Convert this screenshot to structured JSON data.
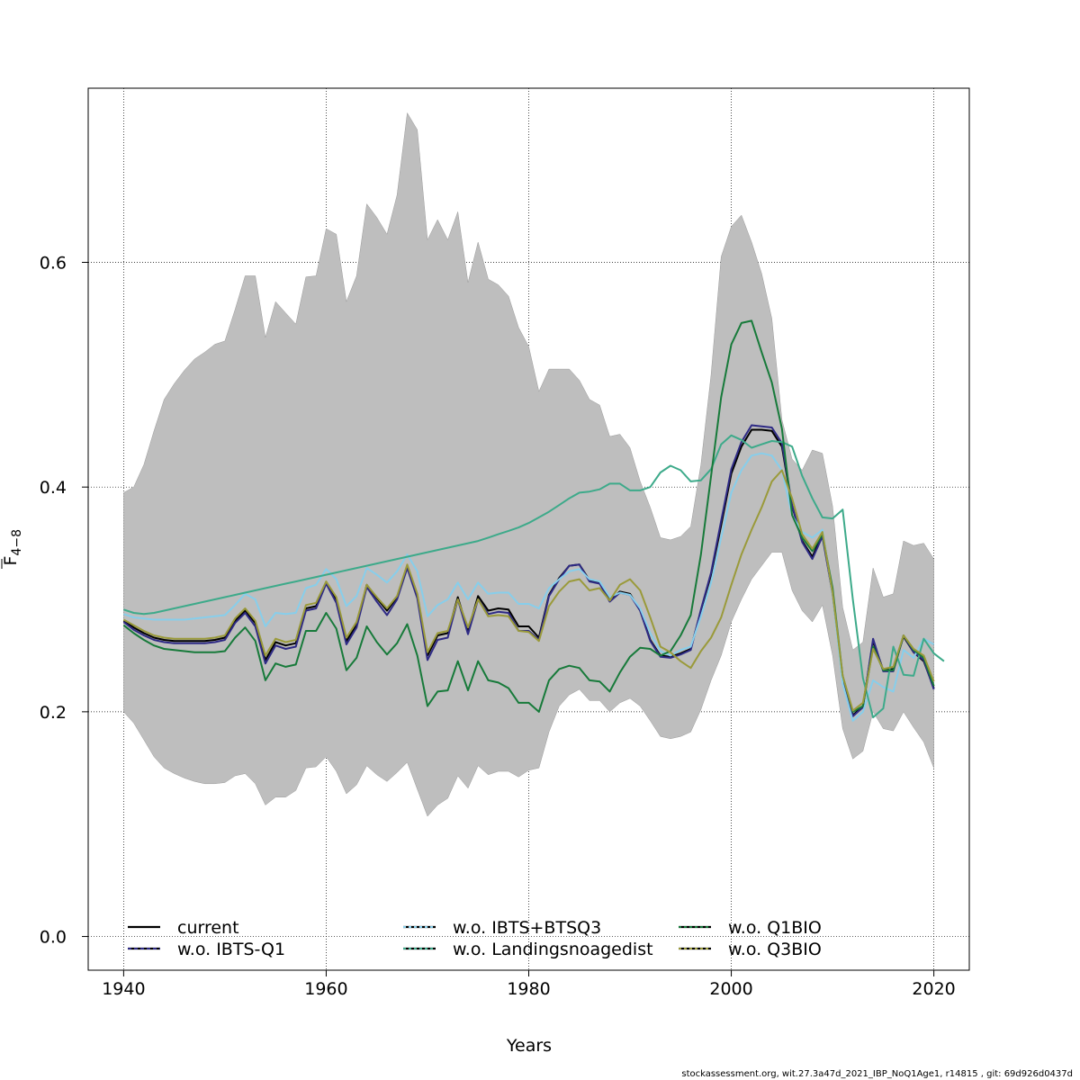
{
  "chart_data": {
    "type": "line",
    "xlabel": "Years",
    "ylabel_main": "F",
    "ylabel_sub": "4−8",
    "xlim": [
      1936.5,
      2023.5
    ],
    "ylim": [
      -0.03,
      0.755
    ],
    "x_ticks": [
      "1940",
      "1960",
      "1980",
      "2000",
      "2020"
    ],
    "y_ticks": [
      "0.0",
      "0.2",
      "0.4",
      "0.6"
    ],
    "grid": true,
    "legend_position": "bottom",
    "footer": "stockassessment.org, wit.27.3a47d_2021_IBP_NoQ1Age1, r14815 , git: 69d926d0437d",
    "years_start": 1940,
    "ci_upper": [
      0.395,
      0.4,
      0.42,
      0.45,
      0.478,
      0.492,
      0.504,
      0.514,
      0.52,
      0.527,
      0.53,
      0.558,
      0.588,
      0.588,
      0.533,
      0.565,
      0.555,
      0.545,
      0.587,
      0.588,
      0.63,
      0.625,
      0.565,
      0.588,
      0.652,
      0.64,
      0.625,
      0.66,
      0.733,
      0.718,
      0.62,
      0.638,
      0.62,
      0.645,
      0.582,
      0.618,
      0.585,
      0.58,
      0.57,
      0.542,
      0.525,
      0.485,
      0.505,
      0.505,
      0.505,
      0.495,
      0.478,
      0.473,
      0.445,
      0.447,
      0.435,
      0.405,
      0.382,
      0.355,
      0.353,
      0.356,
      0.365,
      0.42,
      0.5,
      0.605,
      0.632,
      0.642,
      0.618,
      0.59,
      0.55,
      0.46,
      0.425,
      0.415,
      0.433,
      0.43,
      0.383,
      0.293,
      0.255,
      0.262,
      0.328,
      0.302,
      0.305,
      0.352,
      0.348,
      0.35,
      0.336
    ],
    "ci_lower": [
      0.2,
      0.19,
      0.175,
      0.16,
      0.15,
      0.145,
      0.141,
      0.138,
      0.136,
      0.136,
      0.137,
      0.143,
      0.145,
      0.136,
      0.117,
      0.124,
      0.124,
      0.13,
      0.15,
      0.151,
      0.16,
      0.147,
      0.127,
      0.135,
      0.152,
      0.144,
      0.138,
      0.146,
      0.155,
      0.131,
      0.107,
      0.117,
      0.123,
      0.143,
      0.132,
      0.152,
      0.144,
      0.147,
      0.147,
      0.142,
      0.148,
      0.15,
      0.182,
      0.205,
      0.215,
      0.22,
      0.21,
      0.21,
      0.2,
      0.208,
      0.212,
      0.205,
      0.192,
      0.178,
      0.176,
      0.178,
      0.182,
      0.202,
      0.228,
      0.25,
      0.28,
      0.3,
      0.318,
      0.33,
      0.342,
      0.342,
      0.308,
      0.29,
      0.28,
      0.295,
      0.25,
      0.185,
      0.158,
      0.165,
      0.2,
      0.185,
      0.183,
      0.2,
      0.186,
      0.173,
      0.15
    ],
    "series": [
      {
        "name": "current",
        "color": "#000000",
        "width": 2,
        "dash": "",
        "values": [
          0.281,
          0.275,
          0.27,
          0.266,
          0.264,
          0.263,
          0.263,
          0.263,
          0.263,
          0.264,
          0.266,
          0.281,
          0.29,
          0.279,
          0.246,
          0.262,
          0.259,
          0.261,
          0.292,
          0.294,
          0.315,
          0.3,
          0.263,
          0.277,
          0.313,
          0.301,
          0.29,
          0.302,
          0.33,
          0.304,
          0.25,
          0.268,
          0.27,
          0.302,
          0.272,
          0.303,
          0.29,
          0.292,
          0.291,
          0.276,
          0.276,
          0.266,
          0.304,
          0.319,
          0.33,
          0.331,
          0.317,
          0.315,
          0.299,
          0.307,
          0.305,
          0.29,
          0.264,
          0.25,
          0.249,
          0.252,
          0.256,
          0.29,
          0.322,
          0.366,
          0.412,
          0.436,
          0.451,
          0.451,
          0.45,
          0.436,
          0.383,
          0.352,
          0.338,
          0.358,
          0.306,
          0.23,
          0.197,
          0.205,
          0.263,
          0.237,
          0.238,
          0.267,
          0.253,
          0.245,
          0.221
        ]
      },
      {
        "name": "w.o. IBTS-Q1",
        "color": "#2e2a85",
        "width": 2,
        "dash": "",
        "values": [
          0.28,
          0.273,
          0.268,
          0.264,
          0.262,
          0.261,
          0.261,
          0.261,
          0.261,
          0.262,
          0.264,
          0.279,
          0.288,
          0.276,
          0.243,
          0.259,
          0.256,
          0.258,
          0.29,
          0.292,
          0.314,
          0.297,
          0.26,
          0.275,
          0.311,
          0.298,
          0.286,
          0.3,
          0.328,
          0.301,
          0.246,
          0.264,
          0.266,
          0.3,
          0.269,
          0.3,
          0.287,
          0.289,
          0.288,
          0.272,
          0.272,
          0.264,
          0.303,
          0.318,
          0.33,
          0.331,
          0.316,
          0.314,
          0.298,
          0.306,
          0.304,
          0.29,
          0.263,
          0.249,
          0.248,
          0.251,
          0.255,
          0.291,
          0.324,
          0.37,
          0.416,
          0.44,
          0.455,
          0.454,
          0.453,
          0.439,
          0.384,
          0.351,
          0.336,
          0.356,
          0.305,
          0.229,
          0.196,
          0.204,
          0.265,
          0.236,
          0.236,
          0.268,
          0.253,
          0.246,
          0.22
        ]
      },
      {
        "name": "w.o. IBTS+BTSQ3",
        "color": "#87ceeb",
        "width": 2,
        "dash": "",
        "values": [
          0.287,
          0.284,
          0.283,
          0.282,
          0.282,
          0.282,
          0.282,
          0.283,
          0.284,
          0.285,
          0.286,
          0.295,
          0.305,
          0.3,
          0.276,
          0.288,
          0.287,
          0.288,
          0.31,
          0.313,
          0.327,
          0.318,
          0.294,
          0.303,
          0.328,
          0.322,
          0.315,
          0.325,
          0.34,
          0.325,
          0.285,
          0.295,
          0.3,
          0.315,
          0.3,
          0.315,
          0.305,
          0.306,
          0.306,
          0.296,
          0.296,
          0.292,
          0.31,
          0.318,
          0.325,
          0.327,
          0.318,
          0.316,
          0.302,
          0.306,
          0.304,
          0.292,
          0.27,
          0.254,
          0.25,
          0.255,
          0.258,
          0.285,
          0.315,
          0.355,
          0.395,
          0.415,
          0.428,
          0.43,
          0.428,
          0.415,
          0.375,
          0.36,
          0.355,
          0.362,
          0.305,
          0.225,
          0.192,
          0.2,
          0.228,
          0.222,
          0.218,
          0.255,
          0.248,
          0.265,
          0.26
        ]
      },
      {
        "name": "w.o. Landingsnoagedist",
        "color": "#3daa8a",
        "width": 2,
        "dash": "",
        "values": [
          0.291,
          0.288,
          0.287,
          0.288,
          0.29,
          0.292,
          0.294,
          0.296,
          0.298,
          0.3,
          0.302,
          0.304,
          0.306,
          0.308,
          0.31,
          0.312,
          0.314,
          0.316,
          0.318,
          0.32,
          0.322,
          0.324,
          0.326,
          0.328,
          0.33,
          0.332,
          0.334,
          0.336,
          0.338,
          0.34,
          0.342,
          0.344,
          0.346,
          0.348,
          0.35,
          0.352,
          0.355,
          0.358,
          0.361,
          0.364,
          0.368,
          0.373,
          0.378,
          0.384,
          0.39,
          0.395,
          0.396,
          0.398,
          0.403,
          0.403,
          0.397,
          0.397,
          0.4,
          0.413,
          0.419,
          0.415,
          0.405,
          0.406,
          0.416,
          0.438,
          0.446,
          0.442,
          0.435,
          0.438,
          0.441,
          0.44,
          0.436,
          0.41,
          0.39,
          0.373,
          0.372,
          0.38,
          0.3,
          0.23,
          0.195,
          0.203,
          0.258,
          0.233,
          0.232,
          0.265,
          0.252,
          0.245
        ]
      },
      {
        "name": "w.o. Q1BIO",
        "color": "#177a3a",
        "width": 2,
        "dash": "",
        "values": [
          0.277,
          0.27,
          0.264,
          0.259,
          0.256,
          0.255,
          0.254,
          0.253,
          0.253,
          0.253,
          0.254,
          0.266,
          0.275,
          0.263,
          0.228,
          0.243,
          0.24,
          0.242,
          0.272,
          0.272,
          0.288,
          0.274,
          0.237,
          0.248,
          0.276,
          0.262,
          0.251,
          0.261,
          0.278,
          0.25,
          0.205,
          0.218,
          0.219,
          0.245,
          0.219,
          0.245,
          0.228,
          0.226,
          0.221,
          0.208,
          0.208,
          0.2,
          0.228,
          0.238,
          0.241,
          0.239,
          0.228,
          0.227,
          0.218,
          0.235,
          0.249,
          0.257,
          0.256,
          0.25,
          0.254,
          0.268,
          0.286,
          0.34,
          0.41,
          0.48,
          0.527,
          0.546,
          0.548,
          0.52,
          0.493,
          0.452,
          0.375,
          0.355,
          0.343,
          0.358,
          0.31,
          0.232,
          0.2,
          0.205,
          0.258,
          0.237,
          0.237,
          0.268,
          0.255,
          0.248,
          0.223
        ]
      },
      {
        "name": "w.o. Q3BIO",
        "color": "#9a9a3a",
        "width": 2,
        "dash": "",
        "values": [
          0.282,
          0.277,
          0.272,
          0.268,
          0.266,
          0.265,
          0.265,
          0.265,
          0.265,
          0.266,
          0.268,
          0.283,
          0.292,
          0.281,
          0.25,
          0.265,
          0.262,
          0.264,
          0.295,
          0.297,
          0.316,
          0.302,
          0.266,
          0.28,
          0.313,
          0.302,
          0.292,
          0.303,
          0.331,
          0.305,
          0.253,
          0.27,
          0.272,
          0.3,
          0.275,
          0.3,
          0.285,
          0.286,
          0.285,
          0.272,
          0.271,
          0.263,
          0.294,
          0.307,
          0.316,
          0.318,
          0.308,
          0.31,
          0.299,
          0.313,
          0.318,
          0.308,
          0.284,
          0.258,
          0.253,
          0.245,
          0.239,
          0.254,
          0.266,
          0.284,
          0.313,
          0.34,
          0.362,
          0.382,
          0.405,
          0.415,
          0.39,
          0.358,
          0.345,
          0.36,
          0.306,
          0.232,
          0.201,
          0.208,
          0.256,
          0.238,
          0.24,
          0.268,
          0.256,
          0.25,
          0.227
        ]
      }
    ],
    "legend": [
      {
        "label": "current",
        "color": "#000000",
        "dash": ""
      },
      {
        "label": "w.o. IBTS-Q1",
        "color": "#2e2a85",
        "dash": "4 3"
      },
      {
        "label": "w.o. IBTS+BTSQ3",
        "color": "#87ceeb",
        "dash": "3 3"
      },
      {
        "label": "w.o. Landingsnoagedist",
        "color": "#3daa8a",
        "dash": "3 3"
      },
      {
        "label": "w.o. Q1BIO",
        "color": "#177a3a",
        "dash": "3 3"
      },
      {
        "label": "w.o. Q3BIO",
        "color": "#9a9a3a",
        "dash": "3 3"
      }
    ]
  },
  "colors": {
    "ci_fill": "#bebebe",
    "grid": "#000000"
  }
}
